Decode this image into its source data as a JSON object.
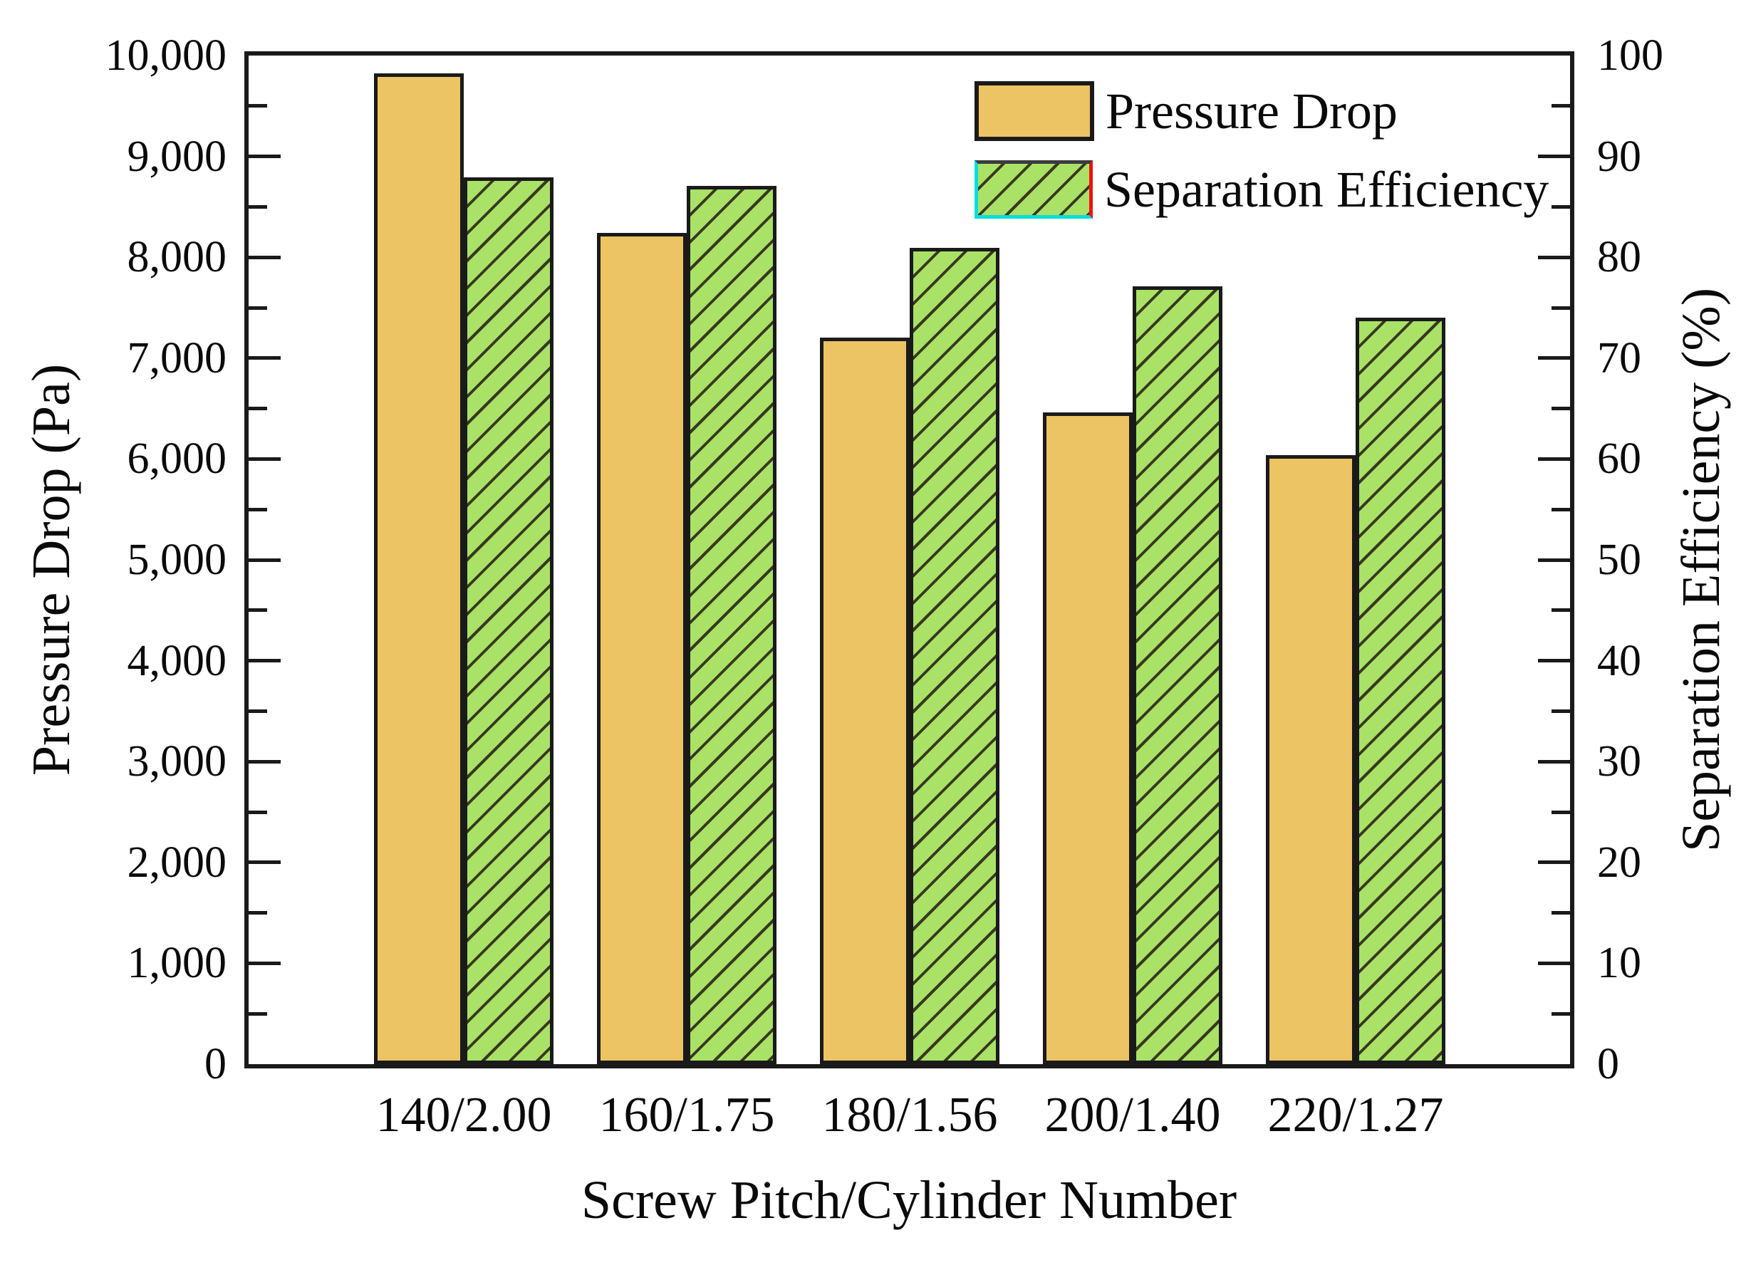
{
  "chart_data": {
    "type": "bar",
    "title": "",
    "xlabel": "Screw Pitch/Cylinder Number",
    "categories": [
      "140/2.00",
      "160/1.75",
      "180/1.56",
      "200/1.40",
      "220/1.27"
    ],
    "series": [
      {
        "name": "Pressure Drop",
        "axis": "left",
        "color": "#ecc464",
        "hatch": "none",
        "values": [
          9820,
          8240,
          7200,
          6460,
          6040
        ]
      },
      {
        "name": "Separation Efficiency",
        "axis": "right",
        "color": "#a9e266",
        "hatch": "/",
        "values": [
          87.9,
          87.1,
          80.9,
          77.1,
          74.0
        ]
      }
    ],
    "left_axis": {
      "label": "Pressure Drop (Pa)",
      "min": 0,
      "max": 10000,
      "major_step": 1000,
      "minor_step": 500,
      "tick_labels": [
        "0",
        "1,000",
        "2,000",
        "3,000",
        "4,000",
        "5,000",
        "6,000",
        "7,000",
        "8,000",
        "9,000",
        "10,000"
      ]
    },
    "right_axis": {
      "label": "Separation Efficiency (%)",
      "min": 0,
      "max": 100,
      "major_step": 10,
      "minor_step": 5,
      "tick_labels": [
        "0",
        "10",
        "20",
        "30",
        "40",
        "50",
        "60",
        "70",
        "80",
        "90",
        "100"
      ]
    },
    "legend": {
      "position": "top-right-inside",
      "entries": [
        "Pressure Drop",
        "Separation Efficiency"
      ]
    },
    "grid": "off",
    "bar_edge_color": "#1a1a1a",
    "hatch_color": "#38381f",
    "legend_green_border": {
      "left_bottom": "#00dede",
      "right": "#ee1111",
      "top": "#3c3c3c"
    }
  }
}
